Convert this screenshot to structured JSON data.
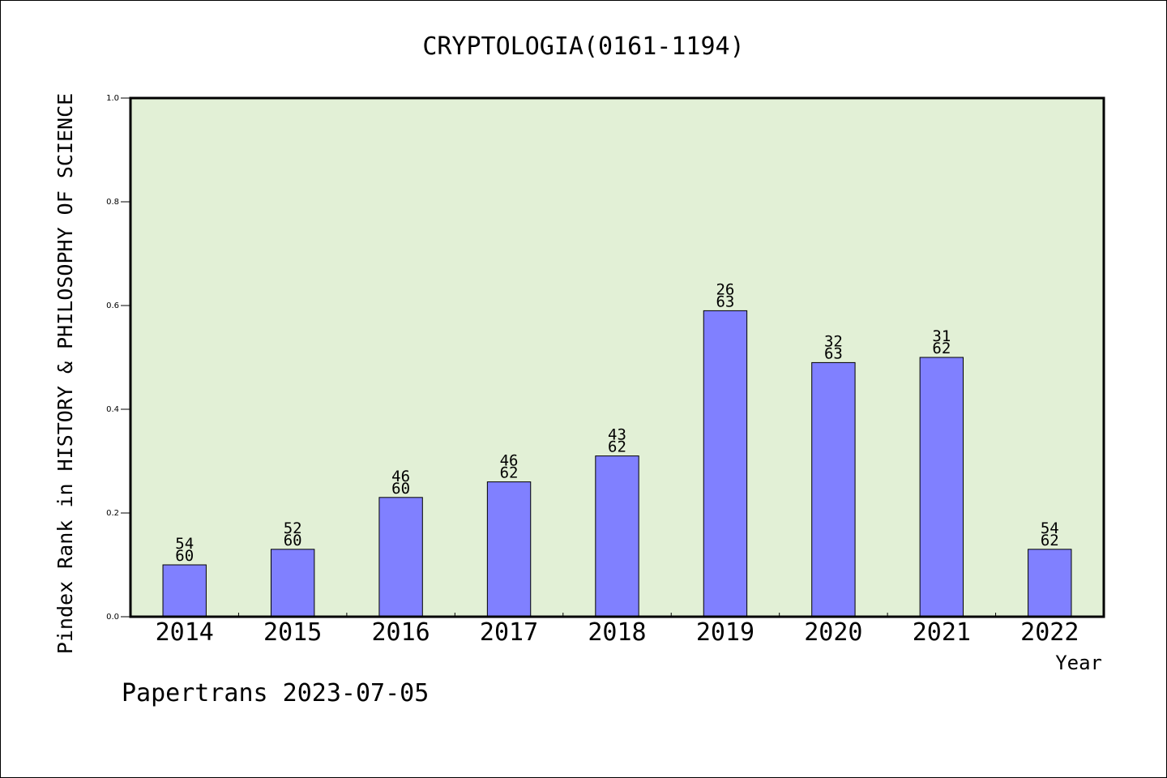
{
  "chart_data": {
    "type": "bar",
    "title": "CRYPTOLOGIA(0161-1194)",
    "xlabel": "Year",
    "ylabel": "Pindex Rank in HISTORY & PHILOSOPHY OF SCIENCE",
    "ylim": [
      0,
      1
    ],
    "yticks": [
      "0.0",
      "0.2",
      "0.4",
      "0.6",
      "0.8",
      "1.0"
    ],
    "categories": [
      "2014",
      "2015",
      "2016",
      "2017",
      "2018",
      "2019",
      "2020",
      "2021",
      "2022"
    ],
    "values": [
      0.1,
      0.13,
      0.23,
      0.26,
      0.31,
      0.59,
      0.49,
      0.5,
      0.13
    ],
    "bar_labels": [
      [
        "54",
        "60"
      ],
      [
        "52",
        "60"
      ],
      [
        "46",
        "60"
      ],
      [
        "46",
        "62"
      ],
      [
        "43",
        "62"
      ],
      [
        "26",
        "63"
      ],
      [
        "32",
        "63"
      ],
      [
        "31",
        "62"
      ],
      [
        "54",
        "62"
      ]
    ],
    "grid": false,
    "bar_color": "#8080ff",
    "plot_background": "#e2f0d6"
  },
  "footer": "Papertrans 2023-07-05"
}
